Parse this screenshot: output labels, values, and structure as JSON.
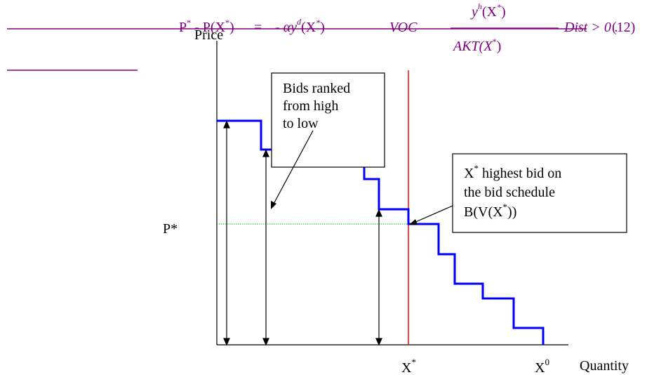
{
  "equation": {
    "p_star": "P",
    "star_sup": "*",
    "dash": " - ",
    "p_of": "P(X",
    "p_of_close": ")",
    "equals": "=",
    "minus_a": "- αy",
    "d_sup": "d",
    "x_star_paren": "(X",
    "x_star_close": ")",
    "voc": "VOC",
    "numerator": "y",
    "h_sup": "h",
    "num_arg": "(X",
    "num_close": ")",
    "denominator": "AKT(X",
    "den_close": ")",
    "dist": "Dist > 0 .",
    "eq_number": "(12)"
  },
  "axes": {
    "y_label": "Price",
    "x_label": "Quantity",
    "p_star_label": "P*",
    "x_star_tick": "X",
    "x_star_sup": "*",
    "x_zero_tick": "X",
    "x_zero_sup": "0"
  },
  "callouts": {
    "bids_box": [
      "Bids ranked",
      "from high",
      "to low"
    ],
    "highest_box": {
      "line1_main": "X",
      "line1_sup": "*",
      "line1_rest": " highest bid on",
      "line2": "the bid schedule",
      "line3_main": "B(V(X",
      "line3_sup": "*",
      "line3_rest": "))"
    }
  },
  "colors": {
    "equation": "#800080",
    "bid_schedule": "#0000ff",
    "x_star_line": "#ff0000",
    "p_star_line": "#00cc00",
    "ink": "#000000"
  }
}
